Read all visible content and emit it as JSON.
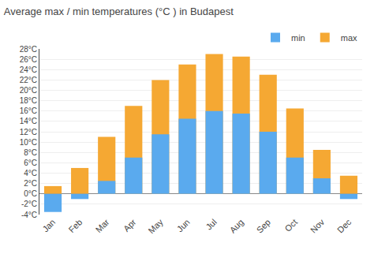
{
  "chart_data": {
    "type": "bar",
    "title": "Average max / min temperatures (°C ) in Budapest",
    "categories": [
      "Jan",
      "Feb",
      "Mar",
      "Apr",
      "May",
      "Jun",
      "Jul",
      "Aug",
      "Sep",
      "Oct",
      "Nov",
      "Dec"
    ],
    "series": [
      {
        "name": "min",
        "color": "#5aaaee",
        "values": [
          -3.5,
          -1.0,
          2.5,
          7.0,
          11.5,
          14.5,
          16.0,
          15.5,
          12.0,
          7.0,
          3.0,
          -1.0
        ]
      },
      {
        "name": "max",
        "color": "#f5a833",
        "values": [
          1.5,
          5.0,
          11.0,
          17.0,
          22.0,
          25.0,
          27.0,
          26.5,
          23.0,
          16.5,
          8.5,
          3.5
        ]
      }
    ],
    "ylim": [
      -4,
      28
    ],
    "yticks": [
      {
        "value": -4,
        "label": "-4°C"
      },
      {
        "value": -2,
        "label": "-2°C"
      },
      {
        "value": 0,
        "label": "0°C"
      },
      {
        "value": 2,
        "label": "2°C"
      },
      {
        "value": 4,
        "label": "4°C"
      },
      {
        "value": 6,
        "label": "6°C"
      },
      {
        "value": 8,
        "label": "8°C"
      },
      {
        "value": 10,
        "label": "10°C"
      },
      {
        "value": 12,
        "label": "12°C"
      },
      {
        "value": 14,
        "label": "14°C"
      },
      {
        "value": 16,
        "label": "16°C"
      },
      {
        "value": 18,
        "label": "18°C"
      },
      {
        "value": 20,
        "label": "20°C"
      },
      {
        "value": 22,
        "label": "22°C"
      },
      {
        "value": 24,
        "label": "24°C"
      },
      {
        "value": 26,
        "label": "26°C"
      },
      {
        "value": 28,
        "label": "28°C"
      }
    ],
    "grid": true,
    "legend": "upper right"
  }
}
